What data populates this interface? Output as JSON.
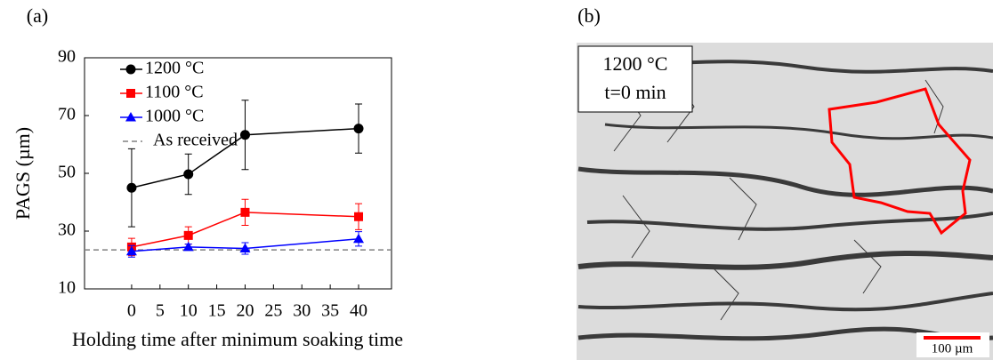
{
  "chart_data": {
    "type": "line",
    "panel_label": "(a)",
    "x_label": "Holding time after minimum soaking time",
    "y_label": "PAGS (µm)",
    "x": [
      0,
      10,
      20,
      40
    ],
    "series": [
      {
        "name": "1200 °C",
        "color": "#000000",
        "marker": "circle",
        "values": [
          45,
          49.7,
          63.3,
          65.5
        ],
        "errors": [
          13.5,
          7,
          12,
          8.5
        ]
      },
      {
        "name": "1100 °C",
        "color": "#ff0000",
        "marker": "square",
        "values": [
          24.5,
          28.5,
          36.5,
          35
        ],
        "errors": [
          3,
          3,
          4.5,
          4.5
        ]
      },
      {
        "name": "1000 °C",
        "color": "#0000ff",
        "marker": "triangle",
        "values": [
          23,
          24.5,
          24,
          27.3
        ],
        "errors": [
          2,
          1,
          2,
          2.5
        ]
      }
    ],
    "reference_lines": [
      {
        "name": "As received",
        "value": 23.5,
        "color": "#808080"
      }
    ],
    "xlim": [
      -8.3,
      45.8
    ],
    "xticks": [
      0,
      5,
      10,
      15,
      20,
      25,
      30,
      35,
      40
    ],
    "ylim": [
      10,
      90
    ],
    "yticks": [
      10,
      30,
      50,
      70,
      90
    ],
    "grid": false,
    "legend": "upper left"
  },
  "image_panel": {
    "panel_label": "(b)",
    "caption_lines": [
      "1200 °C",
      "t=0 min"
    ],
    "scale_bar": "100 µm"
  }
}
